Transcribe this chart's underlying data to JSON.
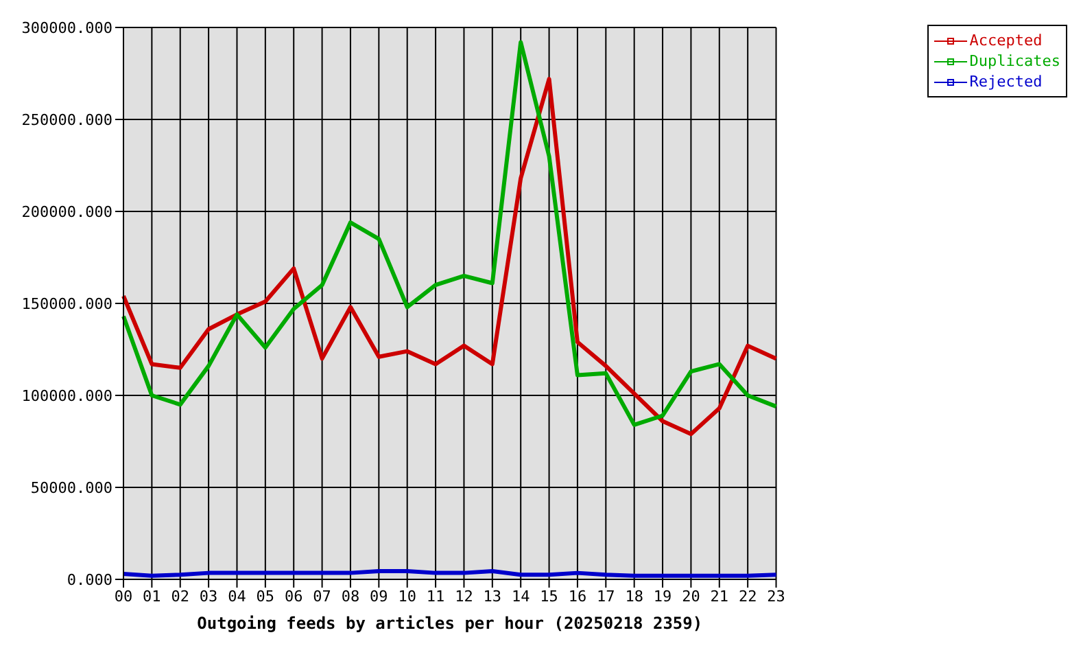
{
  "chart_data": {
    "type": "line",
    "xlabel": "Outgoing feeds by articles per hour (20250218 2359)",
    "categories": [
      "00",
      "01",
      "02",
      "03",
      "04",
      "05",
      "06",
      "07",
      "08",
      "09",
      "10",
      "11",
      "12",
      "13",
      "14",
      "15",
      "16",
      "17",
      "18",
      "19",
      "20",
      "21",
      "22",
      "23"
    ],
    "series": [
      {
        "name": "Accepted",
        "color": "#cc0000",
        "values": [
          154000,
          117000,
          115000,
          136000,
          144000,
          151000,
          169000,
          120000,
          148000,
          121000,
          124000,
          117000,
          127000,
          117000,
          218000,
          272000,
          129000,
          116000,
          101000,
          86000,
          79000,
          93000,
          127000,
          120000
        ]
      },
      {
        "name": "Duplicates",
        "color": "#00aa00",
        "values": [
          143000,
          100000,
          95000,
          116000,
          144000,
          126000,
          147000,
          160000,
          194000,
          185000,
          148000,
          160000,
          165000,
          161000,
          292000,
          230000,
          111000,
          112000,
          84000,
          89000,
          113000,
          117000,
          100000,
          94000
        ]
      },
      {
        "name": "Rejected",
        "color": "#0000cc",
        "values": [
          3000,
          2000,
          2500,
          3500,
          3500,
          3500,
          3500,
          3500,
          3500,
          4500,
          4500,
          3500,
          3500,
          4500,
          2500,
          2500,
          3500,
          2500,
          2000,
          2000,
          2000,
          2000,
          2000,
          2500
        ]
      }
    ],
    "ylim": [
      0,
      300000
    ],
    "yticks": [
      {
        "value": 0,
        "label": "0.000"
      },
      {
        "value": 50000,
        "label": "50000.000"
      },
      {
        "value": 100000,
        "label": "100000.000"
      },
      {
        "value": 150000,
        "label": "150000.000"
      },
      {
        "value": 200000,
        "label": "200000.000"
      },
      {
        "value": 250000,
        "label": "250000.000"
      },
      {
        "value": 300000,
        "label": "300000.000"
      }
    ],
    "grid": true,
    "legend": "top right",
    "marker": "none",
    "line_style": "solid"
  }
}
